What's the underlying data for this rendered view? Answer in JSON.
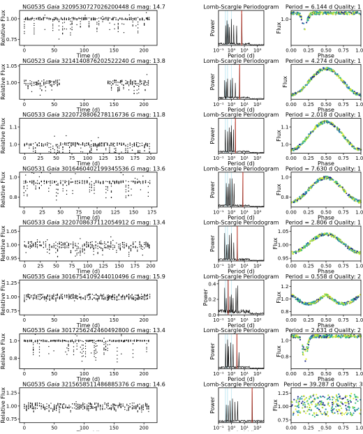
{
  "periodogram_title": "Lomb-Scargle Periodogram",
  "labels": {
    "relative_flux": "Relative Flux",
    "time": "Time (d)",
    "power": "Power",
    "period": "Period (d)",
    "flux": "Flux",
    "phase": "Phase",
    "gaia": "Gaia",
    "gmag_prefix": "G",
    "gmag_suffix": " mag: ",
    "period_prefix": "Period = ",
    "quality_prefix": "Quality: "
  },
  "colors": {
    "points": "#000000",
    "period_line": "#c0392b",
    "alias_band": "#bfe7f2",
    "phase_palette": [
      "#1f2a8a",
      "#2a8fb0",
      "#3fbf7f",
      "#a6dc3c",
      "#e4ee3a"
    ]
  },
  "chart_data": [
    {
      "type": "scatter",
      "field": "NG0535",
      "gaia_id": "3209530727026200448",
      "gmag": "14.7",
      "period": "6.144 d",
      "quality": "1",
      "lc": {
        "xlim": [
          -8,
          222
        ],
        "ylim": [
          0.68,
          1.1
        ],
        "xticks": [
          0,
          50,
          100,
          150,
          200
        ],
        "xticklabels": [
          "0",
          "50",
          "100",
          "150",
          "200"
        ],
        "yticks": [
          0.75,
          1.0
        ],
        "yticklabels": [
          "0.75",
          "1.00"
        ],
        "base": 1.0,
        "dip": 0.25,
        "noise": 0.015,
        "segments": [
          [
            0,
            210
          ]
        ],
        "xlabel": "Time (d)"
      },
      "pg": {
        "ylim": [
          0,
          1.0
        ],
        "yticks": [],
        "yticklabels": [],
        "peak": 6.144,
        "spikes": [
          0.35,
          0.45,
          0.55,
          0.7,
          1.0,
          1.5,
          2.5
        ],
        "xlabel": "Period (d)"
      },
      "ph": {
        "ylim": [
          0.7,
          1.1
        ],
        "yticks": [
          1.0
        ],
        "yticklabels": [
          "1.0"
        ],
        "shape": "eclipse",
        "amp": 0.2
      }
    },
    {
      "type": "scatter",
      "field": "NG0523",
      "gaia_id": "3214140876202522240",
      "gmag": "13.8",
      "period": "4.274 d",
      "quality": "1",
      "lc": {
        "xlim": [
          -8,
          222
        ],
        "ylim": [
          0.95,
          1.055
        ],
        "xticks": [
          0,
          50,
          100,
          150,
          200
        ],
        "xticklabels": [
          "0",
          "50",
          "100",
          "150",
          "200"
        ],
        "yticks": [
          1.0,
          1.05
        ],
        "yticklabels": [
          "1.00",
          "1.05"
        ],
        "base": 1.0,
        "dip": 0.04,
        "noise": 0.008,
        "segments": [
          [
            0,
            60
          ],
          [
            140,
            210
          ]
        ],
        "xlabel": "Time (d)"
      },
      "pg": {
        "ylim": [
          0,
          1.0
        ],
        "yticks": [],
        "yticklabels": [],
        "peak": 4.274,
        "spikes": [
          0.3,
          0.4,
          0.5,
          0.65,
          0.85,
          1.2,
          2.0
        ],
        "xlabel": "Period (d)"
      },
      "ph": {
        "ylim": [
          0.96,
          1.04
        ],
        "yticks": [],
        "yticklabels": [],
        "shape": "sine",
        "amp": 0.03
      }
    },
    {
      "type": "scatter",
      "field": "NG0533",
      "gaia_id": "3220728806278116736",
      "gmag": "11.8",
      "period": "2.018 d",
      "quality": "1",
      "lc": {
        "xlim": [
          -8,
          210
        ],
        "ylim": [
          0.95,
          1.15
        ],
        "xticks": [
          0,
          25,
          50,
          75,
          100,
          125,
          150,
          175,
          200
        ],
        "xticklabels": [
          "0",
          "25",
          "50",
          "75",
          "100",
          "125",
          "150",
          "175",
          "200"
        ],
        "yticks": [
          1.0,
          1.1
        ],
        "yticklabels": [
          "1.0",
          "1.1"
        ],
        "base": 1.0,
        "dip": 0.1,
        "noise": 0.01,
        "segments": [
          [
            0,
            200
          ]
        ],
        "xlabel": "Time (d)"
      },
      "pg": {
        "ylim": [
          0,
          1.0
        ],
        "yticks": [],
        "yticklabels": [],
        "peak": 2.018,
        "spikes": [
          0.33,
          0.5,
          0.67,
          0.9,
          1.0,
          1.4
        ],
        "xlabel": "Period (d)"
      },
      "ph": {
        "ylim": [
          0.95,
          1.15
        ],
        "yticks": [
          1.0,
          1.1
        ],
        "yticklabels": [
          "1.0",
          "1.1"
        ],
        "shape": "sine",
        "amp": 0.08
      }
    },
    {
      "type": "scatter",
      "field": "NG0531",
      "gaia_id": "3016460402199345536",
      "gmag": "13.6",
      "period": "7.630 d",
      "quality": "1",
      "lc": {
        "xlim": [
          -6,
          182
        ],
        "ylim": [
          0.7,
          1.05
        ],
        "xticks": [
          0,
          25,
          50,
          75,
          100,
          125,
          150,
          175
        ],
        "xticklabels": [
          "0",
          "25",
          "50",
          "75",
          "100",
          "125",
          "150",
          "175"
        ],
        "yticks": [
          0.8,
          1.0
        ],
        "yticklabels": [
          "0.8",
          "1.0"
        ],
        "base": 0.95,
        "dip": 0.2,
        "noise": 0.015,
        "segments": [
          [
            0,
            175
          ]
        ],
        "xlabel": "Time (d)"
      },
      "pg": {
        "ylim": [
          0,
          1.0
        ],
        "yticks": [],
        "yticklabels": [],
        "peak": 7.63,
        "spikes": [
          0.4,
          0.5,
          0.62,
          0.8,
          1.1,
          1.6
        ],
        "xlabel": "Period (d)"
      },
      "ph": {
        "ylim": [
          0.7,
          1.05
        ],
        "yticks": [
          0.8,
          1.0
        ],
        "yticklabels": [
          "0.8",
          "1.0"
        ],
        "shape": "sine",
        "amp": 0.12
      }
    },
    {
      "type": "scatter",
      "field": "NG0533",
      "gaia_id": "3220708637112054912",
      "gmag": "13.4",
      "period": "2.806 d",
      "quality": "1",
      "lc": {
        "xlim": [
          -8,
          210
        ],
        "ylim": [
          0.94,
          1.07
        ],
        "xticks": [
          0,
          25,
          50,
          75,
          100,
          125,
          150,
          175,
          200
        ],
        "xticklabels": [
          "0",
          "25",
          "50",
          "75",
          "100",
          "125",
          "150",
          "175",
          "200"
        ],
        "yticks": [
          0.95,
          1.0,
          1.05
        ],
        "yticklabels": [
          "0.95",
          "1.00",
          "1.05"
        ],
        "base": 1.0,
        "dip": 0.05,
        "noise": 0.012,
        "segments": [
          [
            0,
            200
          ]
        ],
        "xlabel": "Time (d)"
      },
      "pg": {
        "ylim": [
          0,
          1.0
        ],
        "yticks": [],
        "yticklabels": [],
        "peak": 2.806,
        "spikes": [
          0.3,
          0.42,
          0.55,
          0.7,
          1.0,
          1.5
        ],
        "xlabel": "Period (d)"
      },
      "ph": {
        "ylim": [
          0.94,
          1.07
        ],
        "yticks": [
          0.95,
          1.0,
          1.05
        ],
        "yticklabels": [
          "0.95",
          "1.00",
          "1.05"
        ],
        "shape": "sine",
        "amp": 0.035
      }
    },
    {
      "type": "scatter",
      "field": "NG0535",
      "gaia_id": "3016754109244010496",
      "gmag": "15.9",
      "period": "0.558 d",
      "quality": "2",
      "lc": {
        "xlim": [
          -8,
          222
        ],
        "ylim": [
          0.68,
          1.3
        ],
        "xticks": [
          0,
          50,
          100,
          150,
          200
        ],
        "xticklabels": [
          "0",
          "50",
          "100",
          "150",
          "200"
        ],
        "yticks": [
          0.75,
          1.0,
          1.25
        ],
        "yticklabels": [
          "0.75",
          "1.00",
          "1.25"
        ],
        "base": 1.0,
        "dip": 0.05,
        "noise": 0.05,
        "segments": [
          [
            0,
            210
          ]
        ],
        "xlabel": "Time (d)"
      },
      "pg": {
        "ylim": [
          0,
          0.45
        ],
        "yticks": [
          0,
          0.2,
          0.4
        ],
        "yticklabels": [
          "0.0",
          "0.2",
          "0.4"
        ],
        "peak": 0.558,
        "spikes": [
          0.3,
          0.4,
          0.8,
          1.0,
          1.3,
          2.2,
          3.0
        ],
        "xlabel": "Period (d)"
      },
      "ph": {
        "ylim": [
          0.75,
          1.3
        ],
        "yticks": [
          0.8,
          1.0,
          1.2
        ],
        "yticklabels": [
          "0.8",
          "1.0",
          "1.2"
        ],
        "shape": "double",
        "amp": 0.15
      }
    },
    {
      "type": "scatter",
      "field": "NG0535",
      "gaia_id": "3017256242460492800",
      "gmag": "13.4",
      "period": "2.631 d",
      "quality": "2",
      "lc": {
        "xlim": [
          -8,
          222
        ],
        "ylim": [
          0.68,
          1.08
        ],
        "xticks": [
          0,
          50,
          100,
          150,
          200
        ],
        "xticklabels": [
          "0",
          "50",
          "100",
          "150",
          "200"
        ],
        "yticks": [
          0.8,
          1.0
        ],
        "yticklabels": [
          "0.8",
          "1.0"
        ],
        "base": 1.0,
        "dip": 0.3,
        "noise": 0.01,
        "segments": [
          [
            0,
            210
          ]
        ],
        "xlabel": "Time (d)"
      },
      "pg": {
        "ylim": [
          0,
          1.0
        ],
        "yticks": [],
        "yticklabels": [],
        "peak": 2.631,
        "spikes": [
          0.35,
          0.5,
          0.6,
          0.9,
          1.3,
          3.8
        ],
        "xlabel": "Period (d)"
      },
      "ph": {
        "ylim": [
          0.65,
          1.08
        ],
        "yticks": [
          0.8,
          1.0
        ],
        "yticklabels": [
          "0.8",
          "1.0"
        ],
        "shape": "eclipse",
        "amp": 0.3
      }
    },
    {
      "type": "scatter",
      "field": "NG0535",
      "gaia_id": "3215658511486885376",
      "gmag": "14.6",
      "period": "39.287 d",
      "quality": "3",
      "lc": {
        "xlim": [
          -8,
          222
        ],
        "ylim": [
          0.68,
          1.35
        ],
        "xticks": [
          0,
          50,
          100,
          150,
          200
        ],
        "xticklabels": [
          "0",
          "50",
          "100",
          "150",
          "200"
        ],
        "yticks": [
          0.75,
          1.0,
          1.25
        ],
        "yticklabels": [
          "0.75",
          "1.00",
          "1.25"
        ],
        "base": 1.0,
        "dip": 0.1,
        "noise": 0.06,
        "segments": [
          [
            0,
            210
          ]
        ],
        "xlabel": "Time (d)"
      },
      "pg": {
        "ylim": [
          0,
          1.0
        ],
        "yticks": [],
        "yticklabels": [],
        "peak": 39.287,
        "spikes": [
          0.4,
          0.55,
          0.8,
          1.2,
          1.9,
          3.0
        ],
        "xlabel": "Period (d)"
      },
      "ph": {
        "ylim": [
          0.7,
          1.35
        ],
        "yticks": [
          0.75,
          1.0,
          1.25
        ],
        "yticklabels": [
          "0.75",
          "1.00",
          "1.25"
        ],
        "shape": "noise",
        "amp": 0.1
      }
    }
  ]
}
